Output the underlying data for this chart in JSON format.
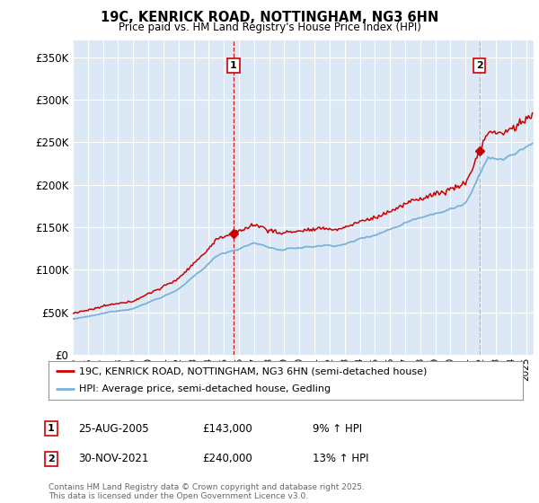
{
  "title": "19C, KENRICK ROAD, NOTTINGHAM, NG3 6HN",
  "subtitle": "Price paid vs. HM Land Registry's House Price Index (HPI)",
  "fig_bg_color": "#ffffff",
  "plot_bg_color": "#dce8f5",
  "ylim": [
    0,
    370000
  ],
  "yticks": [
    0,
    50000,
    100000,
    150000,
    200000,
    250000,
    300000,
    350000
  ],
  "ytick_labels": [
    "£0",
    "£50K",
    "£100K",
    "£150K",
    "£200K",
    "£250K",
    "£300K",
    "£350K"
  ],
  "year_start": 1995,
  "year_end": 2025.5,
  "sale1_year": 2005.646,
  "sale1_price": 143000,
  "sale1_label": "1",
  "sale2_year": 2021.916,
  "sale2_price": 240000,
  "sale2_label": "2",
  "legend_line1": "19C, KENRICK ROAD, NOTTINGHAM, NG3 6HN (semi-detached house)",
  "legend_line2": "HPI: Average price, semi-detached house, Gedling",
  "annotation1_date": "25-AUG-2005",
  "annotation1_price": "£143,000",
  "annotation1_hpi": "9% ↑ HPI",
  "annotation2_date": "30-NOV-2021",
  "annotation2_price": "£240,000",
  "annotation2_hpi": "13% ↑ HPI",
  "footer": "Contains HM Land Registry data © Crown copyright and database right 2025.\nThis data is licensed under the Open Government Licence v3.0.",
  "hpi_color": "#7ab3d9",
  "price_color": "#cc0000",
  "grid_color": "#ffffff",
  "label_box_color": "#cc0000"
}
